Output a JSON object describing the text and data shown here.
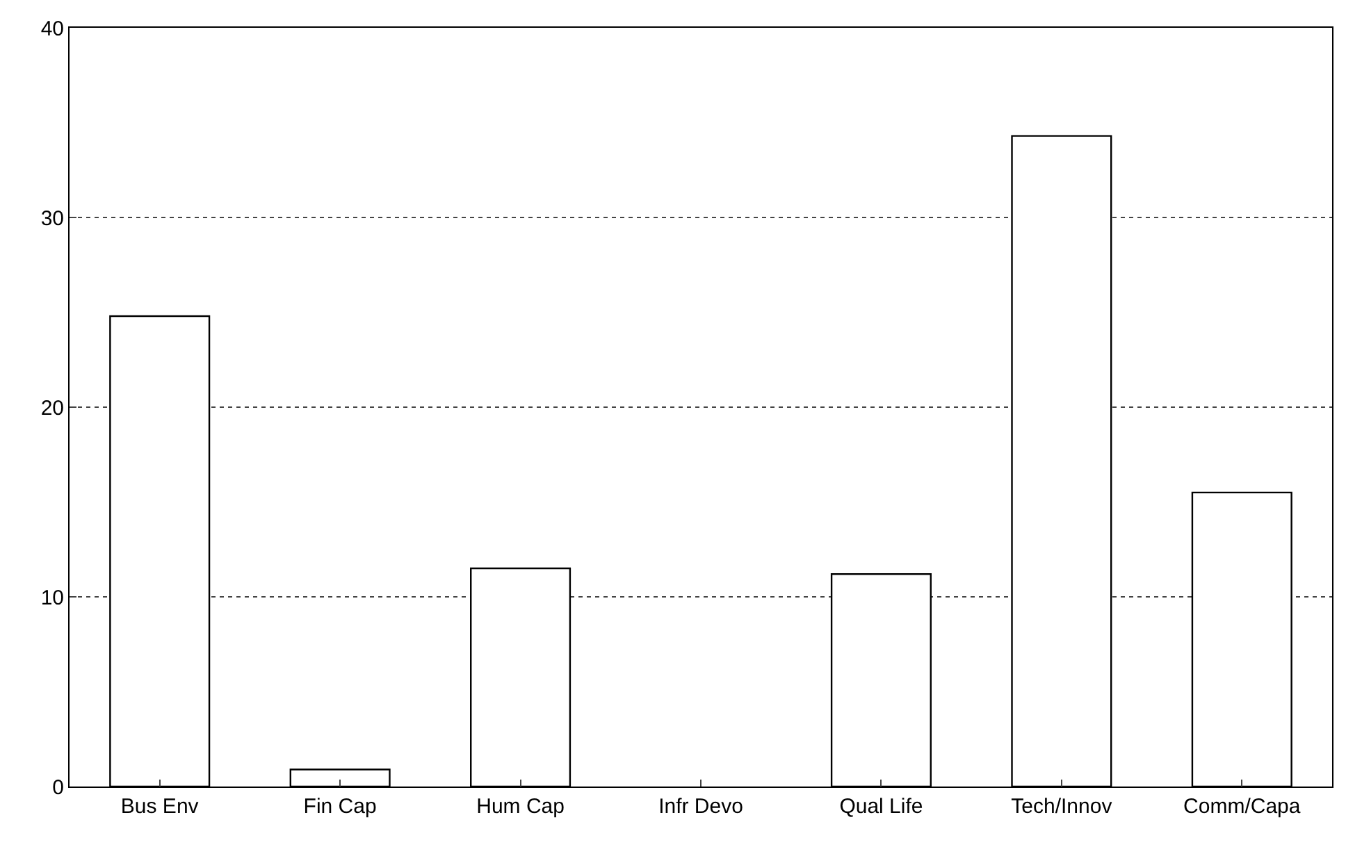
{
  "chart_data": {
    "type": "bar",
    "categories": [
      "Bus Env",
      "Fin Cap",
      "Hum Cap",
      "Infr Devo",
      "Qual Life",
      "Tech/Innov",
      "Comm/Capa"
    ],
    "values": [
      24.8,
      0.9,
      11.5,
      0,
      11.2,
      34.3,
      15.5
    ],
    "color": "#ffffff",
    "ylim": [
      0,
      40
    ],
    "yticks": [
      0,
      10,
      20,
      30,
      40
    ],
    "grid": "y"
  }
}
